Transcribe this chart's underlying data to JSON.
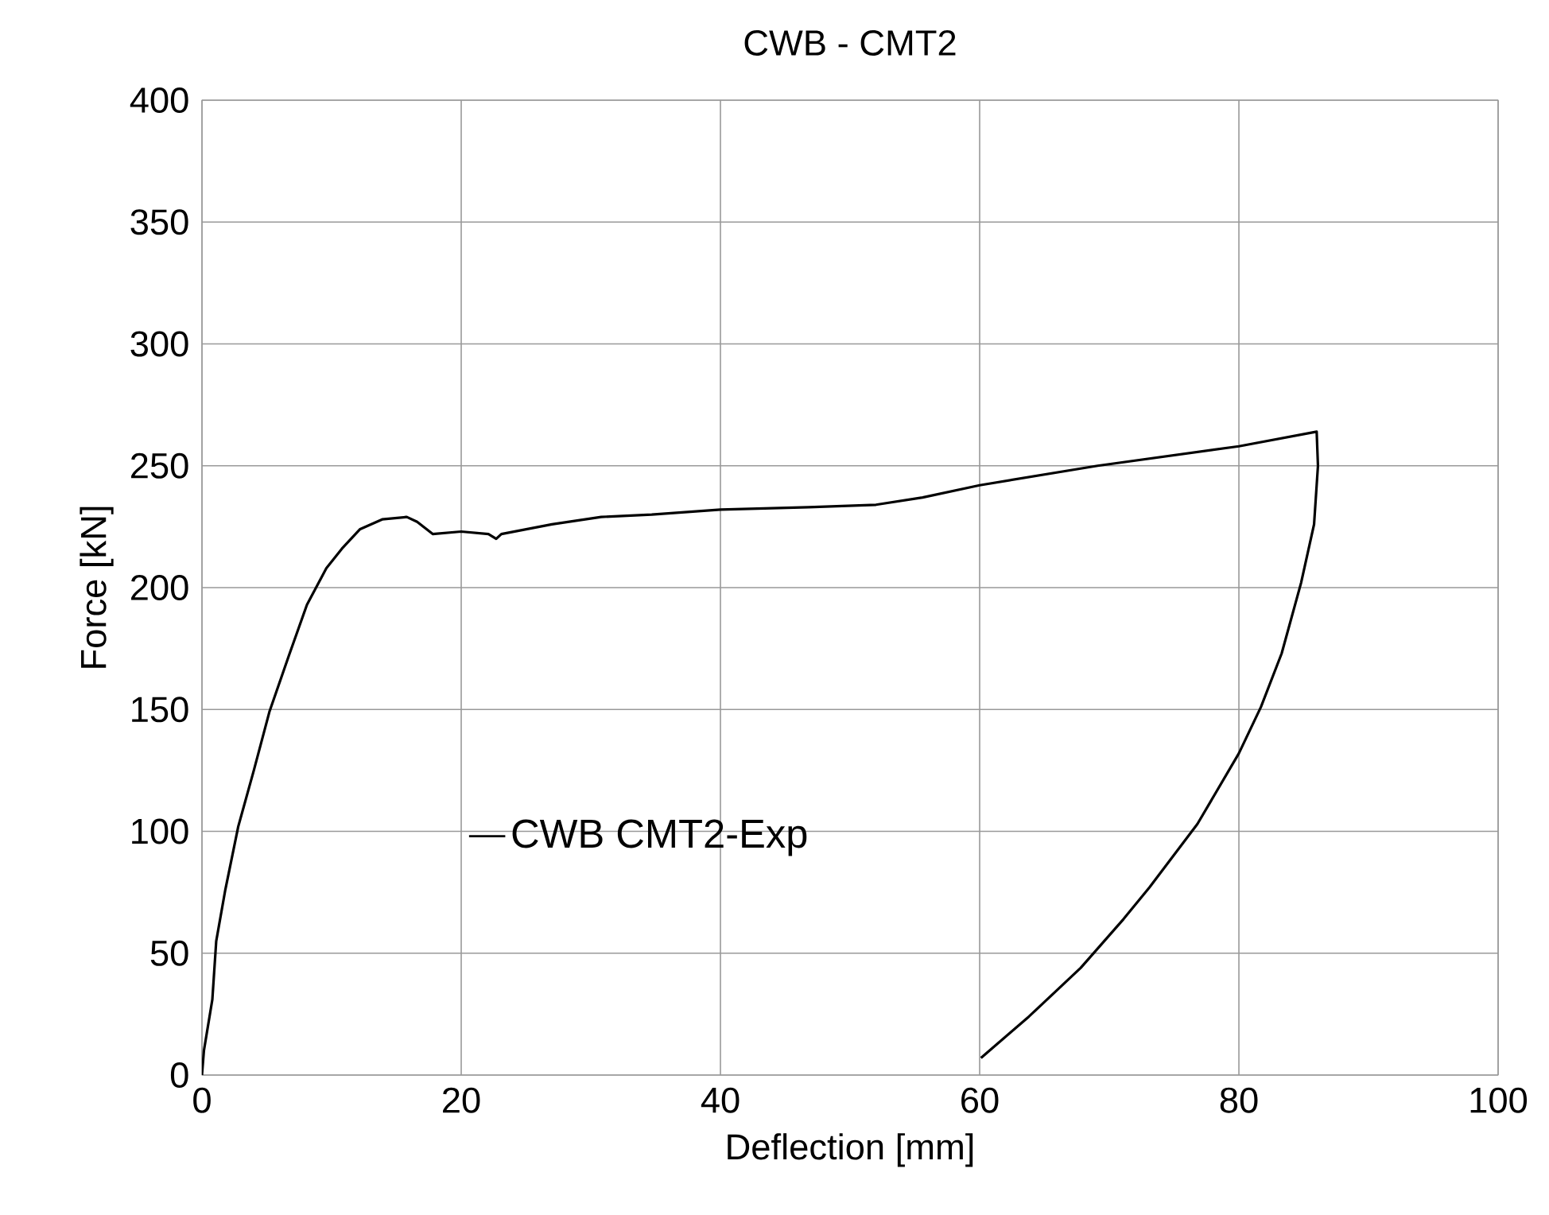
{
  "chart_data": {
    "type": "line",
    "title": "CWB - CMT2",
    "xlabel": "Deflection [mm]",
    "ylabel": "Force [kN]",
    "xlim": [
      0,
      100
    ],
    "ylim": [
      0,
      400
    ],
    "xticks": [
      0,
      20,
      40,
      60,
      80,
      100
    ],
    "yticks": [
      0,
      50,
      100,
      150,
      200,
      250,
      300,
      350,
      400
    ],
    "grid": true,
    "legend": "bottom left",
    "marker": "none",
    "line_style": "solid",
    "series": [
      {
        "name": "CWB CMT2-Exp",
        "color": "#000000",
        "x": [
          0,
          0.15,
          0.8,
          1.1,
          1.8,
          2.8,
          4.0,
          5.2,
          6.7,
          8.1,
          9.6,
          10.8,
          12.2,
          13.9,
          15.8,
          16.6,
          17.8,
          20,
          22.1,
          22.7,
          23.1,
          27,
          30.8,
          34.7,
          40,
          46.8,
          52,
          55.6,
          60,
          69.1,
          80,
          86,
          86.1,
          85.8,
          84.8,
          83.3,
          81.7,
          80,
          76.8,
          73.1,
          71.1,
          67.8,
          63.8,
          60.1
        ],
        "values": [
          0,
          10,
          31,
          55,
          76,
          102,
          125,
          149,
          172,
          193,
          208,
          216,
          224,
          228,
          229,
          227,
          222,
          223,
          222,
          220,
          222,
          226,
          229,
          230,
          232,
          233,
          234,
          237,
          242,
          250,
          258,
          264,
          250,
          226,
          202,
          173,
          151,
          132,
          103,
          77,
          64,
          44,
          24,
          7
        ]
      }
    ]
  }
}
